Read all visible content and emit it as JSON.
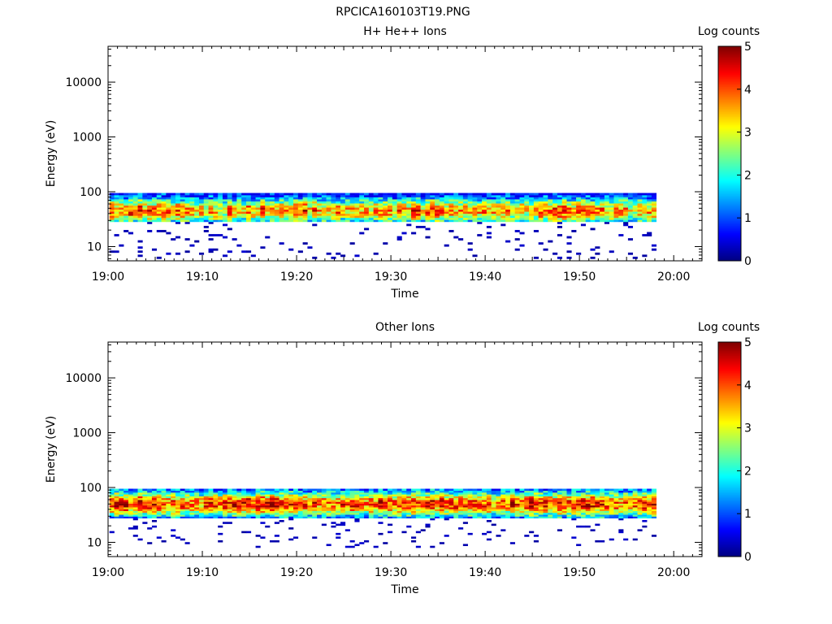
{
  "figure_title": "RPCICA160103T19.PNG",
  "chart_data": [
    {
      "type": "heatmap",
      "title": "H+ He++ Ions",
      "xlabel": "Time",
      "ylabel": "Energy (eV)",
      "x_ticks": [
        "19:00",
        "19:10",
        "19:20",
        "19:30",
        "19:40",
        "19:50",
        "20:00"
      ],
      "xlim": [
        "19:00",
        "20:03"
      ],
      "y_scale": "log",
      "ylim": [
        5.5,
        45000
      ],
      "y_ticks": [
        "10",
        "100",
        "1000",
        "10000"
      ],
      "y_tick_values": [
        10,
        100,
        1000,
        10000
      ],
      "data_time_range": [
        "19:00",
        "19:58"
      ],
      "data_energy_range_eV": [
        6,
        95
      ],
      "peak_energy_eV": 45,
      "peak_log_counts": 4.1,
      "colorbar": {
        "label": "Log counts",
        "range": [
          0,
          5
        ],
        "ticks": [
          "0",
          "1",
          "2",
          "3",
          "4",
          "5"
        ],
        "colormap": "jet"
      },
      "grid": false
    },
    {
      "type": "heatmap",
      "title": "Other Ions",
      "xlabel": "Time",
      "ylabel": "Energy (eV)",
      "x_ticks": [
        "19:00",
        "19:10",
        "19:20",
        "19:30",
        "19:40",
        "19:50",
        "20:00"
      ],
      "xlim": [
        "19:00",
        "20:03"
      ],
      "y_scale": "log",
      "ylim": [
        5.5,
        45000
      ],
      "y_ticks": [
        "10",
        "100",
        "1000",
        "10000"
      ],
      "y_tick_values": [
        10,
        100,
        1000,
        10000
      ],
      "data_time_range": [
        "19:00",
        "19:58"
      ],
      "data_energy_range_eV": [
        8,
        95
      ],
      "peak_energy_eV": 50,
      "peak_log_counts": 4.6,
      "colorbar": {
        "label": "Log counts",
        "range": [
          0,
          5
        ],
        "ticks": [
          "0",
          "1",
          "2",
          "3",
          "4",
          "5"
        ],
        "colormap": "jet"
      },
      "grid": false
    }
  ]
}
